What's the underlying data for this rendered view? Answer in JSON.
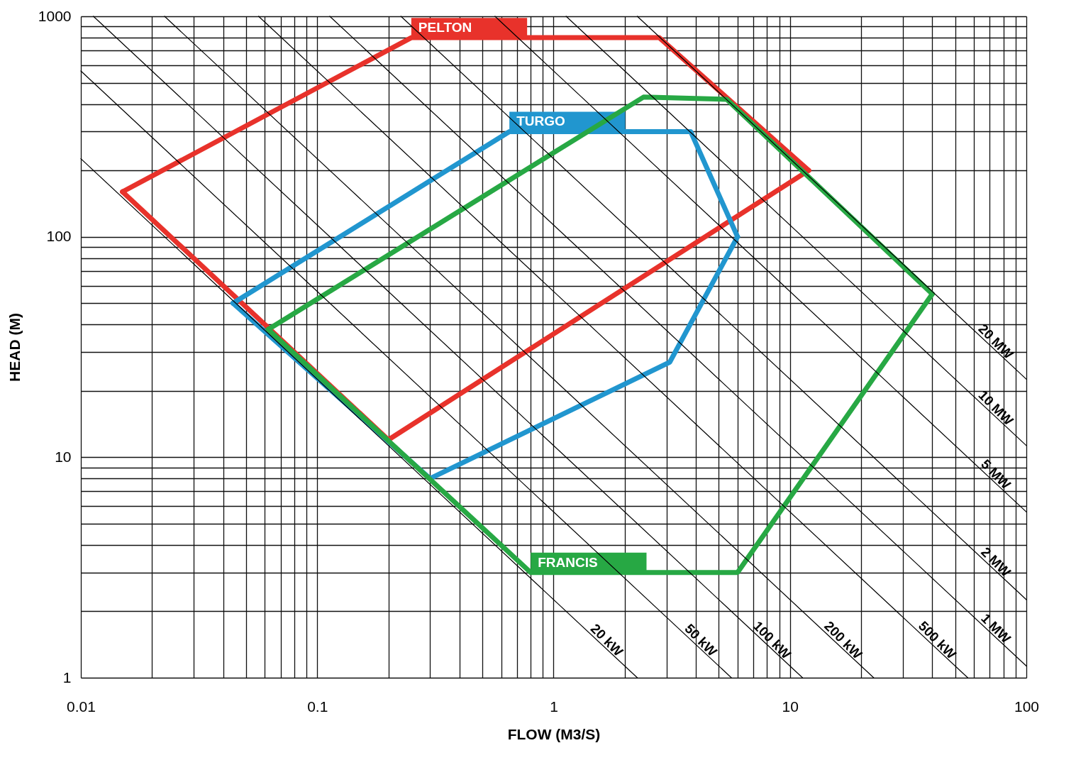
{
  "chart_data": {
    "type": "line",
    "xlabel": "FLOW (M3/S)",
    "ylabel": "HEAD (M)",
    "log": "xy",
    "grid": true,
    "xlim": [
      0.01,
      100
    ],
    "ylim": [
      1,
      1000
    ],
    "xticks": [
      0.01,
      {
        "value": 0.02,
        "label": null
      },
      {
        "value": 0.03,
        "label": null
      },
      {
        "value": 0.04,
        "label": null
      },
      {
        "value": 0.05,
        "label": null
      },
      {
        "value": 0.06,
        "label": null
      },
      {
        "value": 0.07,
        "label": null
      },
      {
        "value": 0.08,
        "label": null
      },
      {
        "value": 0.09,
        "label": null
      },
      0.1,
      {
        "value": 0.2,
        "label": null
      },
      {
        "value": 0.3,
        "label": null
      },
      {
        "value": 0.4,
        "label": null
      },
      {
        "value": 0.5,
        "label": null
      },
      {
        "value": 0.6,
        "label": null
      },
      {
        "value": 0.7,
        "label": null
      },
      {
        "value": 0.8,
        "label": null
      },
      {
        "value": 0.9,
        "label": null
      },
      1,
      {
        "value": 2,
        "label": null
      },
      {
        "value": 3,
        "label": null
      },
      {
        "value": 4,
        "label": null
      },
      {
        "value": 5,
        "label": null
      },
      {
        "value": 6,
        "label": null
      },
      {
        "value": 7,
        "label": null
      },
      {
        "value": 8,
        "label": null
      },
      {
        "value": 9,
        "label": null
      },
      10,
      {
        "value": 20,
        "label": null
      },
      {
        "value": 30,
        "label": null
      },
      {
        "value": 40,
        "label": null
      },
      {
        "value": 50,
        "label": null
      },
      {
        "value": 60,
        "label": null
      },
      {
        "value": 70,
        "label": null
      },
      {
        "value": 80,
        "label": null
      },
      {
        "value": 90,
        "label": null
      },
      100
    ],
    "yticks": [
      1,
      {
        "value": 2,
        "label": null
      },
      {
        "value": 3,
        "label": null
      },
      {
        "value": 4,
        "label": null
      },
      {
        "value": 5,
        "label": null
      },
      {
        "value": 6,
        "label": null
      },
      {
        "value": 7,
        "label": null
      },
      {
        "value": 8,
        "label": null
      },
      {
        "value": 9,
        "label": null
      },
      10,
      {
        "value": 20,
        "label": null
      },
      {
        "value": 30,
        "label": null
      },
      {
        "value": 40,
        "label": null
      },
      {
        "value": 50,
        "label": null
      },
      {
        "value": 60,
        "label": null
      },
      {
        "value": 70,
        "label": null
      },
      {
        "value": 80,
        "label": null
      },
      {
        "value": 90,
        "label": null
      },
      100,
      {
        "value": 200,
        "label": null
      },
      {
        "value": 300,
        "label": null
      },
      {
        "value": 400,
        "label": null
      },
      {
        "value": 500,
        "label": null
      },
      {
        "value": 600,
        "label": null
      },
      {
        "value": 700,
        "label": null
      },
      {
        "value": 800,
        "label": null
      },
      {
        "value": 900,
        "label": null
      },
      1000
    ],
    "series": [
      {
        "name": "PELTON",
        "color": "#e8322b",
        "x": [
          0.015,
          0.25,
          2.8,
          12
        ],
        "values": [
          160,
          800,
          800,
          200
        ]
      },
      {
        "color": "#e8322b",
        "x": [
          0.015,
          0.2,
          12
        ],
        "values": [
          160,
          12,
          200
        ]
      },
      {
        "name": "TURGO",
        "color": "#2196cf",
        "x": [
          0.044,
          0.65,
          3.8,
          6
        ],
        "values": [
          50,
          300,
          300,
          100
        ]
      },
      {
        "color": "#2196cf",
        "x": [
          0.044,
          0.3,
          3.1,
          6
        ],
        "values": [
          50,
          8,
          27,
          100
        ]
      },
      {
        "color": "#27a844",
        "x": [
          0.062,
          2.4,
          5.4,
          40
        ],
        "values": [
          38,
          430,
          420,
          55
        ]
      },
      {
        "name": "FRANCIS",
        "color": "#27a844",
        "x": [
          0.062,
          0.8,
          6,
          40
        ],
        "values": [
          38,
          3,
          3,
          55
        ]
      },
      {
        "name": "20 kW",
        "color": "#000000",
        "x": [
          0.01,
          2.26
        ],
        "values": [
          226,
          1
        ]
      },
      {
        "name": "50 kW",
        "color": "#000000",
        "x": [
          0.01,
          5.65
        ],
        "values": [
          565,
          1
        ]
      },
      {
        "name": "100 kW",
        "color": "#000000",
        "x": [
          0.0113,
          11.3
        ],
        "values": [
          1000,
          1
        ]
      },
      {
        "name": "200 kW",
        "color": "#000000",
        "x": [
          0.0226,
          22.6
        ],
        "values": [
          1000,
          1
        ]
      },
      {
        "name": "500 kW",
        "color": "#000000",
        "x": [
          0.0565,
          56.5
        ],
        "values": [
          1000,
          1
        ]
      },
      {
        "name": "1 MW",
        "color": "#000000",
        "x": [
          0.113,
          100
        ],
        "values": [
          1000,
          1.13
        ]
      },
      {
        "name": "2 MW",
        "color": "#000000",
        "x": [
          0.226,
          100
        ],
        "values": [
          1000,
          2.26
        ]
      },
      {
        "name": "5 MW",
        "color": "#000000",
        "x": [
          0.565,
          100
        ],
        "values": [
          1000,
          5.65
        ]
      },
      {
        "name": "10 MW",
        "color": "#000000",
        "x": [
          1.13,
          100
        ],
        "values": [
          1000,
          11.3
        ]
      },
      {
        "name": "20 MW",
        "color": "#000000",
        "x": [
          2.26,
          100
        ],
        "values": [
          1000,
          22.6
        ]
      }
    ]
  }
}
